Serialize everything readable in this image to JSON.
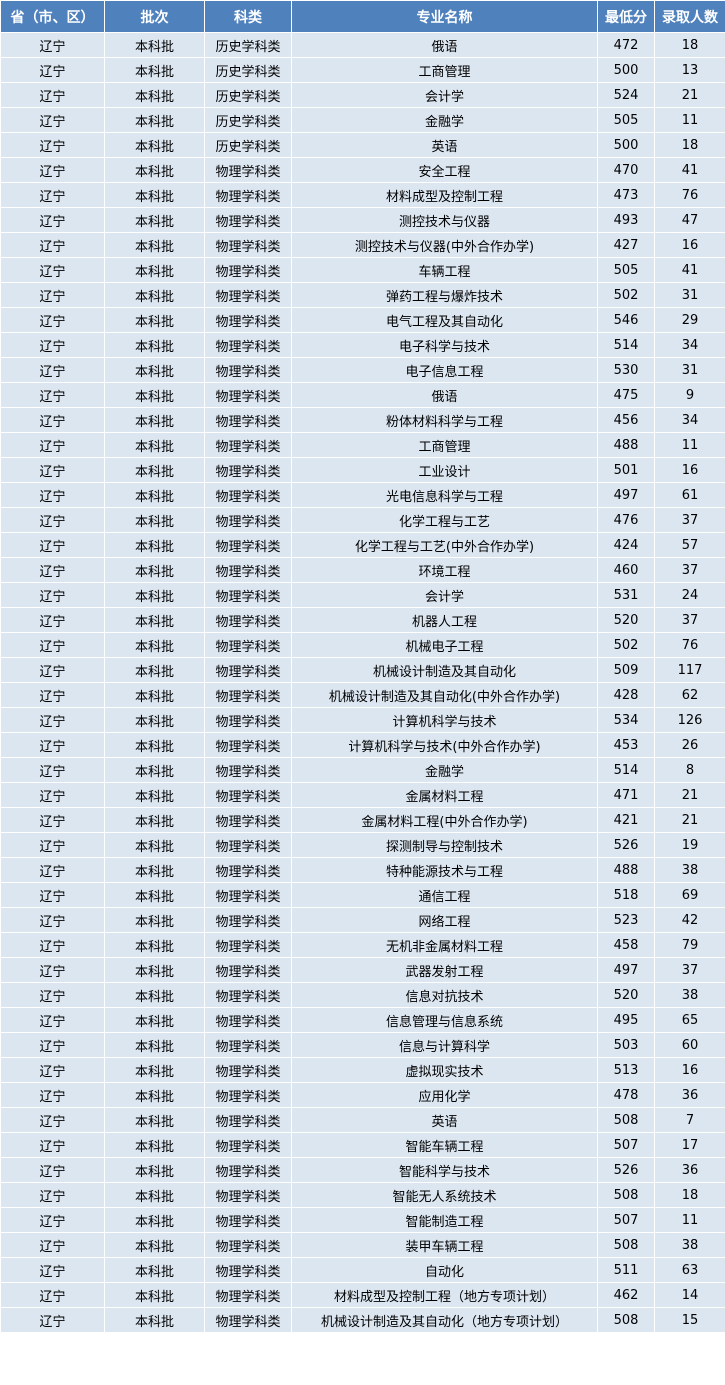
{
  "colors": {
    "header_bg": "#4f81bd",
    "row_bg": "#dce6f1",
    "border": "#ffffff"
  },
  "table": {
    "headers": [
      "省（市、区）",
      "批次",
      "科类",
      "专业名称",
      "最低分",
      "录取人数"
    ],
    "rows": [
      [
        "辽宁",
        "本科批",
        "历史学科类",
        "俄语",
        "472",
        "18"
      ],
      [
        "辽宁",
        "本科批",
        "历史学科类",
        "工商管理",
        "500",
        "13"
      ],
      [
        "辽宁",
        "本科批",
        "历史学科类",
        "会计学",
        "524",
        "21"
      ],
      [
        "辽宁",
        "本科批",
        "历史学科类",
        "金融学",
        "505",
        "11"
      ],
      [
        "辽宁",
        "本科批",
        "历史学科类",
        "英语",
        "500",
        "18"
      ],
      [
        "辽宁",
        "本科批",
        "物理学科类",
        "安全工程",
        "470",
        "41"
      ],
      [
        "辽宁",
        "本科批",
        "物理学科类",
        "材料成型及控制工程",
        "473",
        "76"
      ],
      [
        "辽宁",
        "本科批",
        "物理学科类",
        "测控技术与仪器",
        "493",
        "47"
      ],
      [
        "辽宁",
        "本科批",
        "物理学科类",
        "测控技术与仪器(中外合作办学)",
        "427",
        "16"
      ],
      [
        "辽宁",
        "本科批",
        "物理学科类",
        "车辆工程",
        "505",
        "41"
      ],
      [
        "辽宁",
        "本科批",
        "物理学科类",
        "弹药工程与爆炸技术",
        "502",
        "31"
      ],
      [
        "辽宁",
        "本科批",
        "物理学科类",
        "电气工程及其自动化",
        "546",
        "29"
      ],
      [
        "辽宁",
        "本科批",
        "物理学科类",
        "电子科学与技术",
        "514",
        "34"
      ],
      [
        "辽宁",
        "本科批",
        "物理学科类",
        "电子信息工程",
        "530",
        "31"
      ],
      [
        "辽宁",
        "本科批",
        "物理学科类",
        "俄语",
        "475",
        "9"
      ],
      [
        "辽宁",
        "本科批",
        "物理学科类",
        "粉体材料科学与工程",
        "456",
        "34"
      ],
      [
        "辽宁",
        "本科批",
        "物理学科类",
        "工商管理",
        "488",
        "11"
      ],
      [
        "辽宁",
        "本科批",
        "物理学科类",
        "工业设计",
        "501",
        "16"
      ],
      [
        "辽宁",
        "本科批",
        "物理学科类",
        "光电信息科学与工程",
        "497",
        "61"
      ],
      [
        "辽宁",
        "本科批",
        "物理学科类",
        "化学工程与工艺",
        "476",
        "37"
      ],
      [
        "辽宁",
        "本科批",
        "物理学科类",
        "化学工程与工艺(中外合作办学)",
        "424",
        "57"
      ],
      [
        "辽宁",
        "本科批",
        "物理学科类",
        "环境工程",
        "460",
        "37"
      ],
      [
        "辽宁",
        "本科批",
        "物理学科类",
        "会计学",
        "531",
        "24"
      ],
      [
        "辽宁",
        "本科批",
        "物理学科类",
        "机器人工程",
        "520",
        "37"
      ],
      [
        "辽宁",
        "本科批",
        "物理学科类",
        "机械电子工程",
        "502",
        "76"
      ],
      [
        "辽宁",
        "本科批",
        "物理学科类",
        "机械设计制造及其自动化",
        "509",
        "117"
      ],
      [
        "辽宁",
        "本科批",
        "物理学科类",
        "机械设计制造及其自动化(中外合作办学)",
        "428",
        "62"
      ],
      [
        "辽宁",
        "本科批",
        "物理学科类",
        "计算机科学与技术",
        "534",
        "126"
      ],
      [
        "辽宁",
        "本科批",
        "物理学科类",
        "计算机科学与技术(中外合作办学)",
        "453",
        "26"
      ],
      [
        "辽宁",
        "本科批",
        "物理学科类",
        "金融学",
        "514",
        "8"
      ],
      [
        "辽宁",
        "本科批",
        "物理学科类",
        "金属材料工程",
        "471",
        "21"
      ],
      [
        "辽宁",
        "本科批",
        "物理学科类",
        "金属材料工程(中外合作办学)",
        "421",
        "21"
      ],
      [
        "辽宁",
        "本科批",
        "物理学科类",
        "探测制导与控制技术",
        "526",
        "19"
      ],
      [
        "辽宁",
        "本科批",
        "物理学科类",
        "特种能源技术与工程",
        "488",
        "38"
      ],
      [
        "辽宁",
        "本科批",
        "物理学科类",
        "通信工程",
        "518",
        "69"
      ],
      [
        "辽宁",
        "本科批",
        "物理学科类",
        "网络工程",
        "523",
        "42"
      ],
      [
        "辽宁",
        "本科批",
        "物理学科类",
        "无机非金属材料工程",
        "458",
        "79"
      ],
      [
        "辽宁",
        "本科批",
        "物理学科类",
        "武器发射工程",
        "497",
        "37"
      ],
      [
        "辽宁",
        "本科批",
        "物理学科类",
        "信息对抗技术",
        "520",
        "38"
      ],
      [
        "辽宁",
        "本科批",
        "物理学科类",
        "信息管理与信息系统",
        "495",
        "65"
      ],
      [
        "辽宁",
        "本科批",
        "物理学科类",
        "信息与计算科学",
        "503",
        "60"
      ],
      [
        "辽宁",
        "本科批",
        "物理学科类",
        "虚拟现实技术",
        "513",
        "16"
      ],
      [
        "辽宁",
        "本科批",
        "物理学科类",
        "应用化学",
        "478",
        "36"
      ],
      [
        "辽宁",
        "本科批",
        "物理学科类",
        "英语",
        "508",
        "7"
      ],
      [
        "辽宁",
        "本科批",
        "物理学科类",
        "智能车辆工程",
        "507",
        "17"
      ],
      [
        "辽宁",
        "本科批",
        "物理学科类",
        "智能科学与技术",
        "526",
        "36"
      ],
      [
        "辽宁",
        "本科批",
        "物理学科类",
        "智能无人系统技术",
        "508",
        "18"
      ],
      [
        "辽宁",
        "本科批",
        "物理学科类",
        "智能制造工程",
        "507",
        "11"
      ],
      [
        "辽宁",
        "本科批",
        "物理学科类",
        "装甲车辆工程",
        "508",
        "38"
      ],
      [
        "辽宁",
        "本科批",
        "物理学科类",
        "自动化",
        "511",
        "63"
      ],
      [
        "辽宁",
        "本科批",
        "物理学科类",
        "材料成型及控制工程（地方专项计划）",
        "462",
        "14"
      ],
      [
        "辽宁",
        "本科批",
        "物理学科类",
        "机械设计制造及其自动化（地方专项计划）",
        "508",
        "15"
      ]
    ]
  }
}
